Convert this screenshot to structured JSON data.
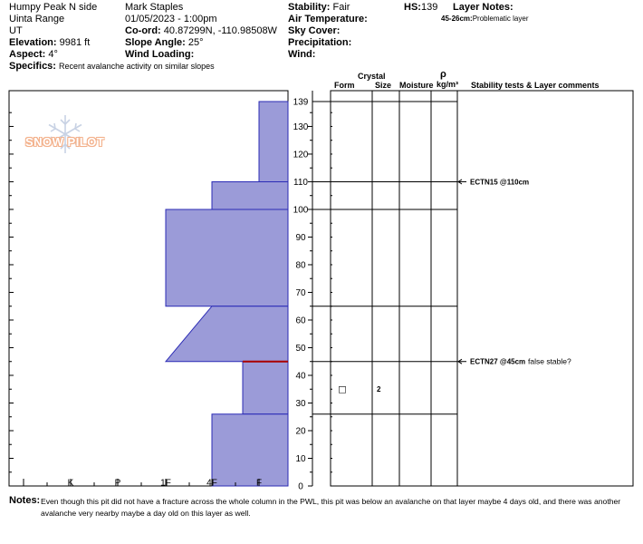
{
  "header": {
    "location": "Humpy Peak N side",
    "range": "Uinta Range",
    "state": "UT",
    "elevation_label": "Elevation:",
    "elevation_value": "9981 ft",
    "aspect_label": "Aspect:",
    "aspect_value": "4°",
    "specifics_label": "Specifics:",
    "specifics_value": "Recent avalanche activity on similar slopes",
    "observer": "Mark Staples",
    "datetime": "01/05/2023 - 1:00pm",
    "coord_label": "Co-ord:",
    "coord_value": "40.87299N, -110.98508W",
    "slope_label": "Slope Angle:",
    "slope_value": "25°",
    "wind_loading_label": "Wind Loading:",
    "stability_label": "Stability:",
    "stability_value": "Fair",
    "air_temp_label": "Air Temperature:",
    "sky_cover_label": "Sky Cover:",
    "precip_label": "Precipitation:",
    "wind_label": "Wind:",
    "hs_label": "HS:",
    "hs_value": "139",
    "layer_notes_label": "Layer Notes:",
    "layer_note_range": "45-26cm:",
    "layer_note_text": "Problematic layer"
  },
  "columns": {
    "crystal": "Crystal",
    "form": "Form",
    "size": "Size",
    "moisture": "Moisture",
    "rho": "ρ",
    "density_unit": "kg/m³",
    "comments": "Stability tests & Layer comments"
  },
  "logo_text": "SNOW PILOT",
  "colors": {
    "hardness_fill": "#9b9bd8",
    "hardness_stroke": "#2b2bb5",
    "weak_layer": "#aa0000",
    "logo": "#f3b08a"
  },
  "chart_data": {
    "type": "area",
    "y_axis": {
      "min": 0,
      "max": 139,
      "ticks": [
        0,
        10,
        20,
        30,
        40,
        50,
        60,
        70,
        80,
        90,
        100,
        110,
        120,
        130,
        139
      ]
    },
    "hardness_axis": {
      "ticks": [
        "I",
        "K",
        "P",
        "1F",
        "4F",
        "F"
      ]
    },
    "hardness_profile": [
      {
        "top": 139,
        "bottom": 110,
        "hardness": "F"
      },
      {
        "top": 110,
        "bottom": 100,
        "hardness": "4F"
      },
      {
        "top": 100,
        "bottom": 65,
        "hardness": "1F"
      },
      {
        "top": 65,
        "bottom": 45,
        "hardness_top": "4F",
        "hardness_bottom": "1F"
      },
      {
        "top": 45,
        "bottom": 26,
        "hardness": "4F-F"
      },
      {
        "top": 26,
        "bottom": 0,
        "hardness": "4F"
      }
    ],
    "layer_boundaries": [
      139,
      110,
      100,
      65,
      45,
      26
    ],
    "grain": {
      "depth": 35,
      "form_symbol": "□",
      "size": "2"
    },
    "stability_tests": [
      {
        "depth": 110,
        "label": "ECTN15 @110cm",
        "comment": ""
      },
      {
        "depth": 45,
        "label": "ECTN27 @45cm",
        "comment": "false stable?"
      }
    ]
  },
  "notes": {
    "label": "Notes:",
    "line1": "Even though this pit did not have a fracture across the whole column in the PWL, this pit was below an avalanche on that layer maybe 4 days old, and there was another",
    "line2": "avalanche very nearby maybe a day old on this layer as well."
  }
}
